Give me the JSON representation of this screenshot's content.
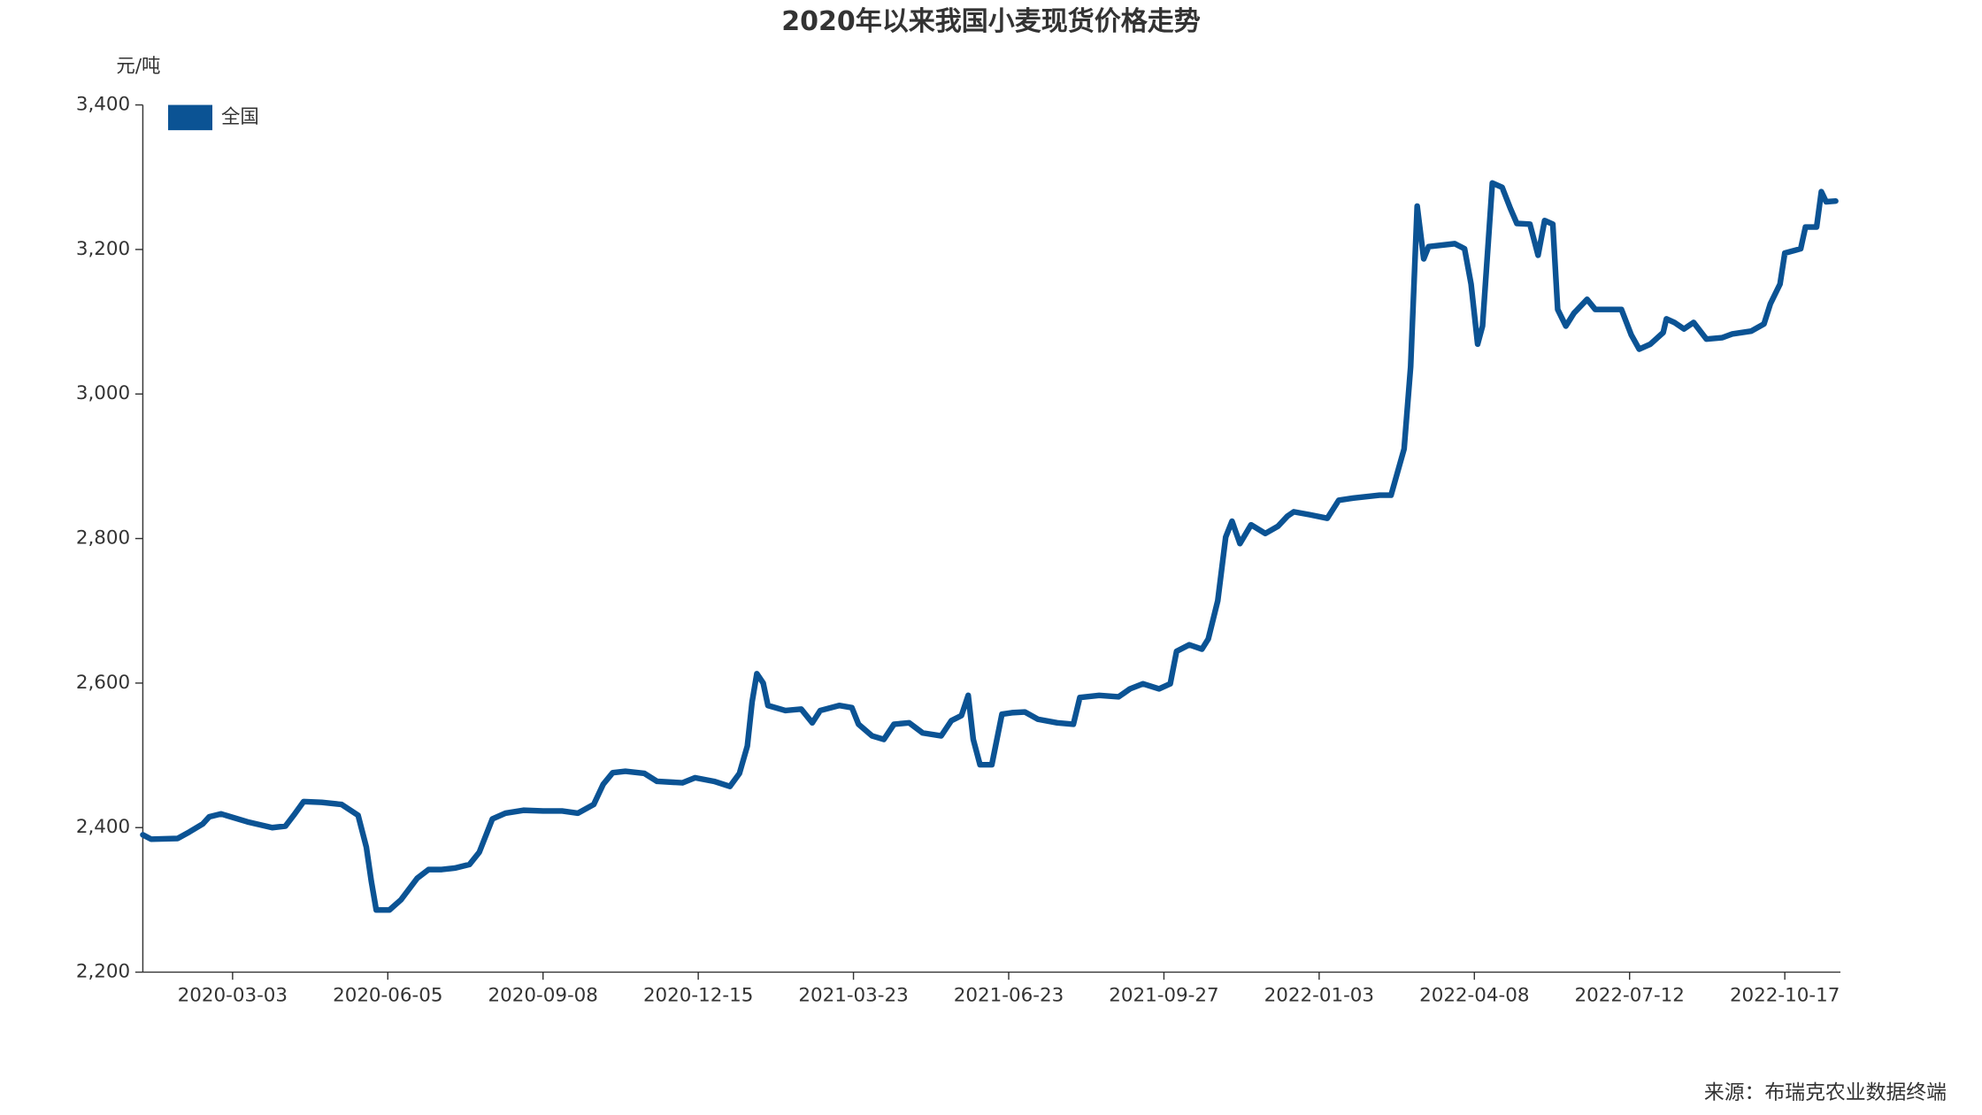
{
  "chart_data": {
    "type": "line",
    "title": "2020年以来我国小麦现货价格走势",
    "y_label": "元/吨",
    "source": "来源：布瑞克农业数据终端",
    "legend": "top-left",
    "xlim": [
      "2020-01-09",
      "2022-11-21"
    ],
    "xticks": [
      "2020-03-03",
      "2020-06-05",
      "2020-09-08",
      "2020-12-15",
      "2021-03-23",
      "2021-06-23",
      "2021-09-27",
      "2022-01-03",
      "2022-04-08",
      "2022-07-12",
      "2022-10-17"
    ],
    "ylim": [
      2200,
      3400
    ],
    "yticks": [
      {
        "value": 2200,
        "label": "2,200"
      },
      {
        "value": 2400,
        "label": "2,400"
      },
      {
        "value": 2600,
        "label": "2,600"
      },
      {
        "value": 2800,
        "label": "2,800"
      },
      {
        "value": 3000,
        "label": "3,000"
      },
      {
        "value": 3200,
        "label": "3,200"
      },
      {
        "value": 3400,
        "label": "3,400"
      }
    ],
    "x": [
      "2020-01-09",
      "2020-01-14",
      "2020-01-30",
      "2020-02-06",
      "2020-02-14",
      "2020-02-18",
      "2020-02-25",
      "2020-03-12",
      "2020-03-27",
      "2020-04-04",
      "2020-04-09",
      "2020-04-15",
      "2020-04-26",
      "2020-05-08",
      "2020-05-18",
      "2020-05-23",
      "2020-05-26",
      "2020-05-29",
      "2020-06-06",
      "2020-06-13",
      "2020-06-23",
      "2020-06-30",
      "2020-07-08",
      "2020-07-16",
      "2020-07-25",
      "2020-07-31",
      "2020-08-08",
      "2020-08-16",
      "2020-08-27",
      "2020-09-08",
      "2020-09-20",
      "2020-09-30",
      "2020-10-10",
      "2020-10-16",
      "2020-10-22",
      "2020-10-30",
      "2020-11-11",
      "2020-11-19",
      "2020-12-05",
      "2020-12-13",
      "2020-12-25",
      "2021-01-04",
      "2021-01-10",
      "2021-01-15",
      "2021-01-18",
      "2021-01-21",
      "2021-01-25",
      "2021-01-28",
      "2021-02-08",
      "2021-02-18",
      "2021-02-25",
      "2021-03-02",
      "2021-03-14",
      "2021-03-22",
      "2021-03-26",
      "2021-04-03",
      "2021-04-10",
      "2021-04-16",
      "2021-04-25",
      "2021-05-03",
      "2021-05-14",
      "2021-05-20",
      "2021-05-26",
      "2021-05-30",
      "2021-06-02",
      "2021-06-06",
      "2021-06-13",
      "2021-06-19",
      "2021-06-25",
      "2021-07-03",
      "2021-07-11",
      "2021-07-23",
      "2021-08-02",
      "2021-08-06",
      "2021-08-18",
      "2021-08-30",
      "2021-09-06",
      "2021-09-14",
      "2021-09-24",
      "2021-10-01",
      "2021-10-05",
      "2021-10-13",
      "2021-10-21",
      "2021-10-25",
      "2021-10-31",
      "2021-11-05",
      "2021-11-09",
      "2021-11-14",
      "2021-11-21",
      "2021-11-30",
      "2021-12-08",
      "2021-12-14",
      "2021-12-18",
      "2021-12-28",
      "2022-01-08",
      "2022-01-15",
      "2022-01-24",
      "2022-02-09",
      "2022-02-16",
      "2022-02-24",
      "2022-02-28",
      "2022-03-04",
      "2022-03-08",
      "2022-03-11",
      "2022-03-27",
      "2022-04-02",
      "2022-04-06",
      "2022-04-10",
      "2022-04-13",
      "2022-04-19",
      "2022-04-25",
      "2022-04-30",
      "2022-05-04",
      "2022-05-12",
      "2022-05-17",
      "2022-05-21",
      "2022-05-26",
      "2022-05-29",
      "2022-06-03",
      "2022-06-08",
      "2022-06-16",
      "2022-06-21",
      "2022-07-07",
      "2022-07-13",
      "2022-07-18",
      "2022-07-25",
      "2022-08-02",
      "2022-08-04",
      "2022-08-09",
      "2022-08-15",
      "2022-08-21",
      "2022-08-29",
      "2022-09-08",
      "2022-09-14",
      "2022-09-26",
      "2022-10-04",
      "2022-10-08",
      "2022-10-14",
      "2022-10-17",
      "2022-10-27",
      "2022-10-30",
      "2022-11-06",
      "2022-11-09",
      "2022-11-12",
      "2022-11-18"
    ],
    "series": [
      {
        "name": "全国",
        "color": "#0b5394",
        "values": [
          2390,
          2384,
          2385,
          2394,
          2405,
          2415,
          2419,
          2408,
          2400,
          2402,
          2417,
          2436,
          2435,
          2432,
          2417,
          2373,
          2326,
          2286,
          2286,
          2300,
          2330,
          2342,
          2342,
          2344,
          2349,
          2366,
          2412,
          2420,
          2424,
          2423,
          2423,
          2420,
          2432,
          2460,
          2476,
          2478,
          2475,
          2464,
          2462,
          2469,
          2464,
          2457,
          2475,
          2513,
          2574,
          2613,
          2600,
          2569,
          2562,
          2564,
          2545,
          2562,
          2569,
          2566,
          2543,
          2527,
          2522,
          2543,
          2545,
          2531,
          2527,
          2548,
          2555,
          2583,
          2522,
          2487,
          2487,
          2557,
          2559,
          2560,
          2550,
          2545,
          2543,
          2580,
          2583,
          2581,
          2592,
          2599,
          2592,
          2599,
          2644,
          2653,
          2647,
          2661,
          2714,
          2802,
          2824,
          2793,
          2819,
          2807,
          2817,
          2831,
          2837,
          2833,
          2828,
          2853,
          2856,
          2860,
          2860,
          2924,
          3038,
          3260,
          3187,
          3204,
          3208,
          3201,
          3152,
          3069,
          3094,
          3292,
          3286,
          3257,
          3236,
          3235,
          3192,
          3240,
          3235,
          3117,
          3094,
          3112,
          3131,
          3117,
          3117,
          3082,
          3062,
          3069,
          3085,
          3104,
          3099,
          3090,
          3099,
          3076,
          3078,
          3083,
          3087,
          3097,
          3125,
          3152,
          3195,
          3201,
          3231,
          3231,
          3280,
          3266,
          3267
        ]
      }
    ]
  }
}
